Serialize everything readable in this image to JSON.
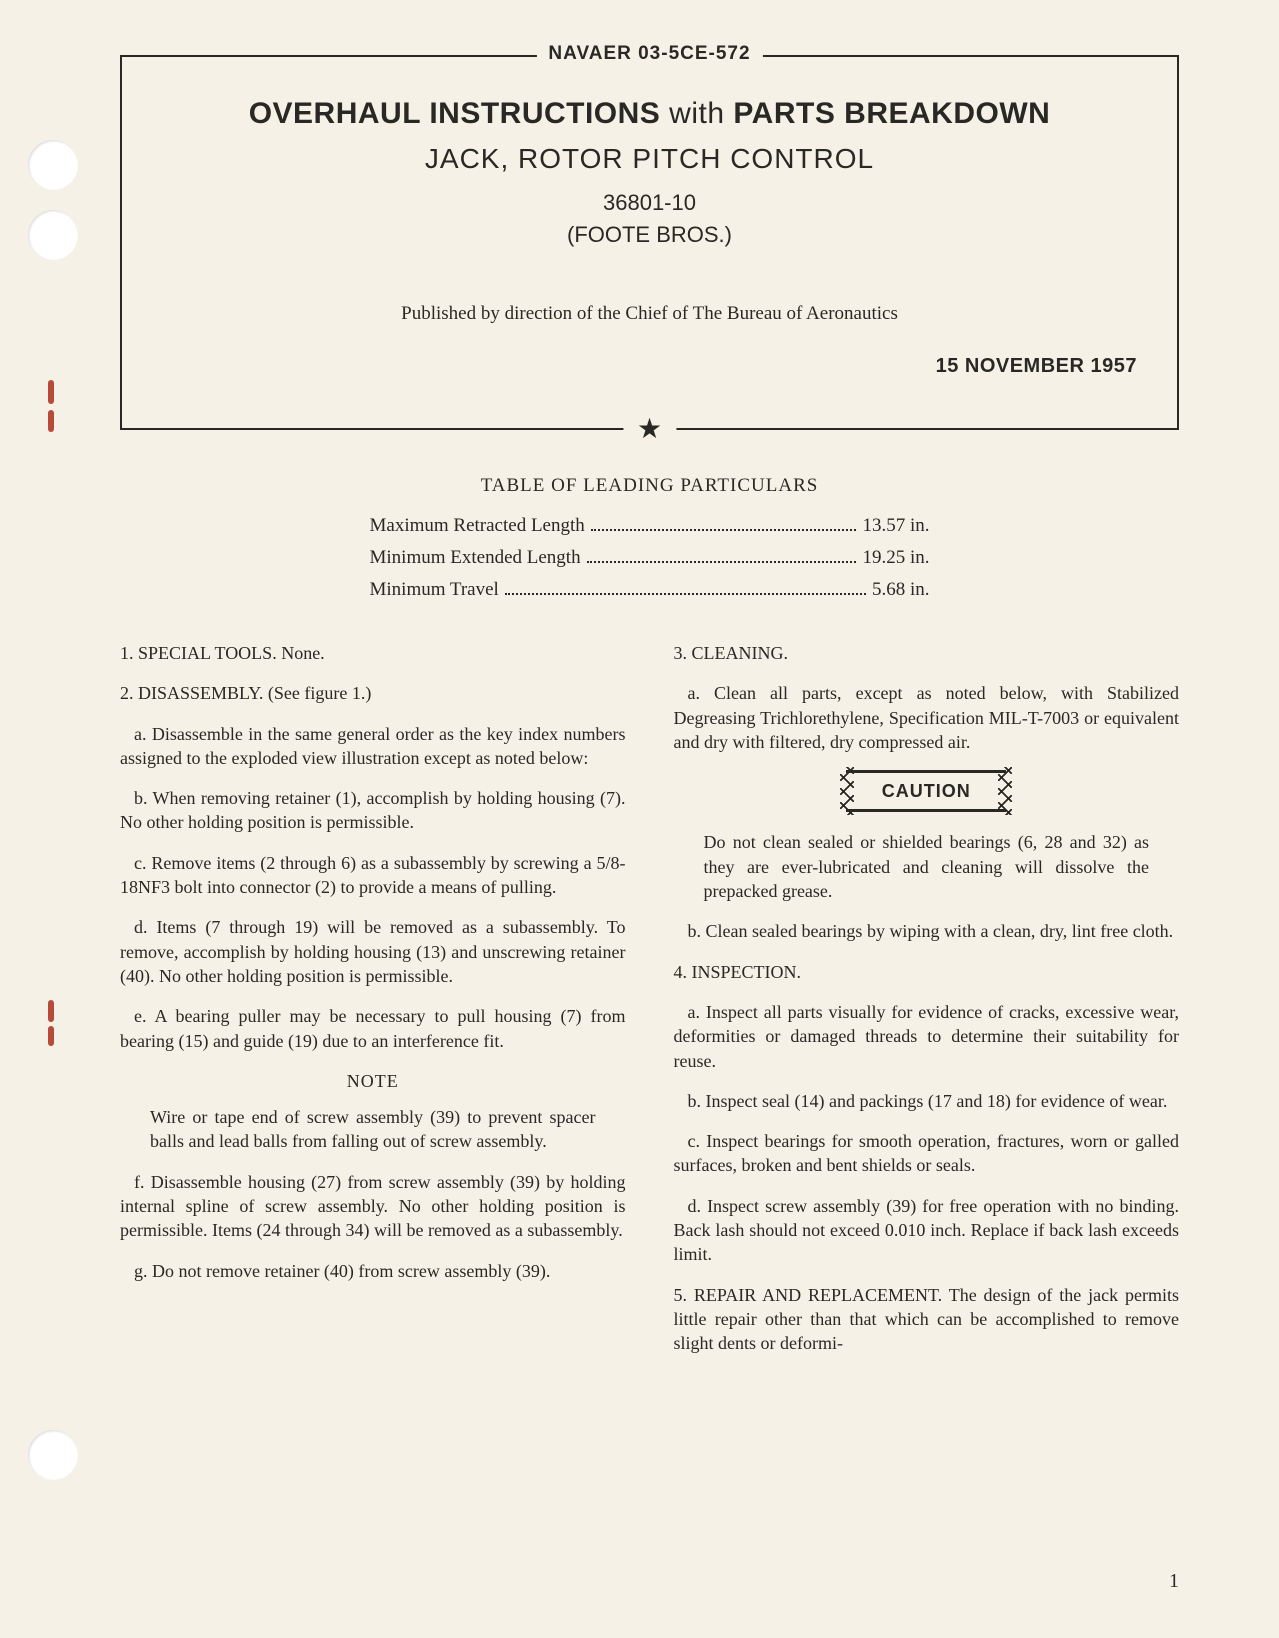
{
  "doc_number": "NAVAER 03-5CE-572",
  "title_main_a": "OVERHAUL INSTRUCTIONS",
  "title_main_b": "with",
  "title_main_c": "PARTS BREAKDOWN",
  "title_sub": "JACK, ROTOR PITCH CONTROL",
  "part_number": "36801-10",
  "manufacturer": "(FOOTE BROS.)",
  "published_by": "Published by direction of the Chief of The Bureau of Aeronautics",
  "publish_date": "15 NOVEMBER 1957",
  "particulars_title": "TABLE OF LEADING PARTICULARS",
  "particulars": [
    {
      "label": "Maximum Retracted Length",
      "value": "13.57 in."
    },
    {
      "label": "Minimum Extended Length",
      "value": "19.25 in."
    },
    {
      "label": "Minimum Travel",
      "value": "5.68 in."
    }
  ],
  "left_col": {
    "p1": "1. SPECIAL TOOLS. None.",
    "p2": "2. DISASSEMBLY. (See figure 1.)",
    "p3": "a. Disassemble in the same general order as the key index numbers assigned to the exploded view illustration except as noted below:",
    "p4": "b. When removing retainer (1), accomplish by holding housing (7). No other holding position is permissible.",
    "p5": "c. Remove items (2 through 6) as a subassembly by screwing a 5/8-18NF3 bolt into connector (2) to provide a means of pulling.",
    "p6": "d. Items (7 through 19) will be removed as a subassembly. To remove, accomplish by holding housing (13) and unscrewing retainer (40). No other holding position is permissible.",
    "p7": "e. A bearing puller may be necessary to pull housing (7) from bearing (15) and guide (19) due to an interference fit.",
    "note_heading": "NOTE",
    "note_body": "Wire or tape end of screw assembly (39) to prevent spacer balls and lead balls from falling out of screw assembly.",
    "p8": "f. Disassemble housing (27) from screw assembly (39) by holding internal spline of screw assembly. No other holding position is permissible. Items (24 through 34) will be removed as a subassembly.",
    "p9": "g. Do not remove retainer (40) from screw assembly (39)."
  },
  "right_col": {
    "p1": "3. CLEANING.",
    "p2": "a. Clean all parts, except as noted below, with Stabilized Degreasing Trichlorethylene, Specification MIL-T-7003 or equivalent and dry with filtered, dry compressed air.",
    "caution": "CAUTION",
    "caution_body": "Do not clean sealed or shielded bearings (6, 28 and 32) as they are ever-lubricated and cleaning will dissolve the prepacked grease.",
    "p3": "b. Clean sealed bearings by wiping with a clean, dry, lint free cloth.",
    "p4": "4. INSPECTION.",
    "p5": "a. Inspect all parts visually for evidence of cracks, excessive wear, deformities or damaged threads to determine their suitability for reuse.",
    "p6": "b. Inspect seal (14) and packings (17 and 18) for evidence of wear.",
    "p7": "c. Inspect bearings for smooth operation, fractures, worn or galled surfaces, broken and bent shields or seals.",
    "p8": "d. Inspect screw assembly (39) for free operation with no binding. Back lash should not exceed 0.010 inch. Replace if back lash exceeds limit.",
    "p9": "5. REPAIR AND REPLACEMENT. The design of the jack permits little repair other than that which can be accomplished to remove slight dents or deformi-"
  },
  "page_number": "1"
}
